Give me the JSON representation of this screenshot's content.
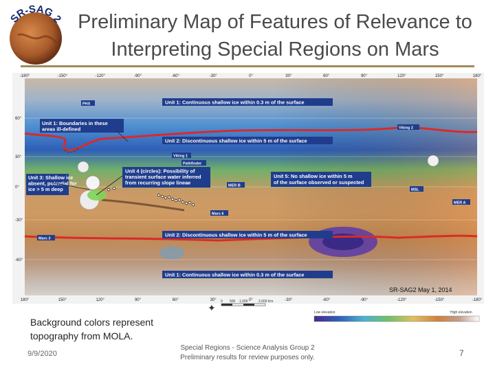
{
  "title_line1": "Preliminary Map of Features of Relevance to",
  "title_line2": "Interpreting Special Regions on Mars",
  "logo_text": "SR-SAG 2",
  "caption_line1": "Background colors represent",
  "caption_line2": "topography from MOLA.",
  "footer": {
    "date": "9/9/2020",
    "center_line1": "Special Regions - Science Analysis Group 2",
    "center_line2": "Preliminary results for review purposes only.",
    "page_number": "7"
  },
  "map": {
    "credit": "SR-SAG2 May 1, 2014",
    "top_ticks": [
      "-180°",
      "-150°",
      "-120°",
      "-90°",
      "-60°",
      "-30°",
      "0°",
      "30°",
      "60°",
      "90°",
      "120°",
      "150°",
      "180°"
    ],
    "bottom_ticks": [
      "180°",
      "150°",
      "120°",
      "90°",
      "60°",
      "30°",
      "0°",
      "-30°",
      "-60°",
      "-90°",
      "-120°",
      "-150°",
      "-180°"
    ],
    "lat_ticks": [
      "60°",
      "30°",
      "0°",
      "-30°",
      "-60°"
    ],
    "units": [
      "Unit 1: Continuous shallow ice within 0.3 m of the surface",
      "Unit 2: Discontinuous shallow ice within 5 m of the surface",
      "Unit 3: Shallow ice absent, potential for ice > 5 m deep",
      "Unit 4 (circles): Possibility of transient surface water inferred from recurring slope lineae",
      "Unit 5: No shallow ice within 5 m of the surface observed or suspected",
      "Unit 2: Discontinuous shallow ice within 5 m of the surface",
      "Unit 1: Continuous shallow ice within 0.3 m of the surface"
    ],
    "boundary_note": "Unit 1: Boundaries in these areas ill-defined",
    "landers": [
      "PHX",
      "Viking 2",
      "Viking 1",
      "Pathfinder",
      "MER B",
      "MSL",
      "MER A",
      "Mars 3",
      "Mars 6"
    ],
    "scale_labels": [
      "0",
      "500",
      "1,000",
      "2,000 Km"
    ],
    "legend_low": "Low elevation",
    "legend_high": "High elevation"
  },
  "colors": {
    "title": "#4a4a4a",
    "rule": "#a08a5c",
    "boundary_red": "#d92a2a",
    "unit_box": "#1f3d8c"
  }
}
